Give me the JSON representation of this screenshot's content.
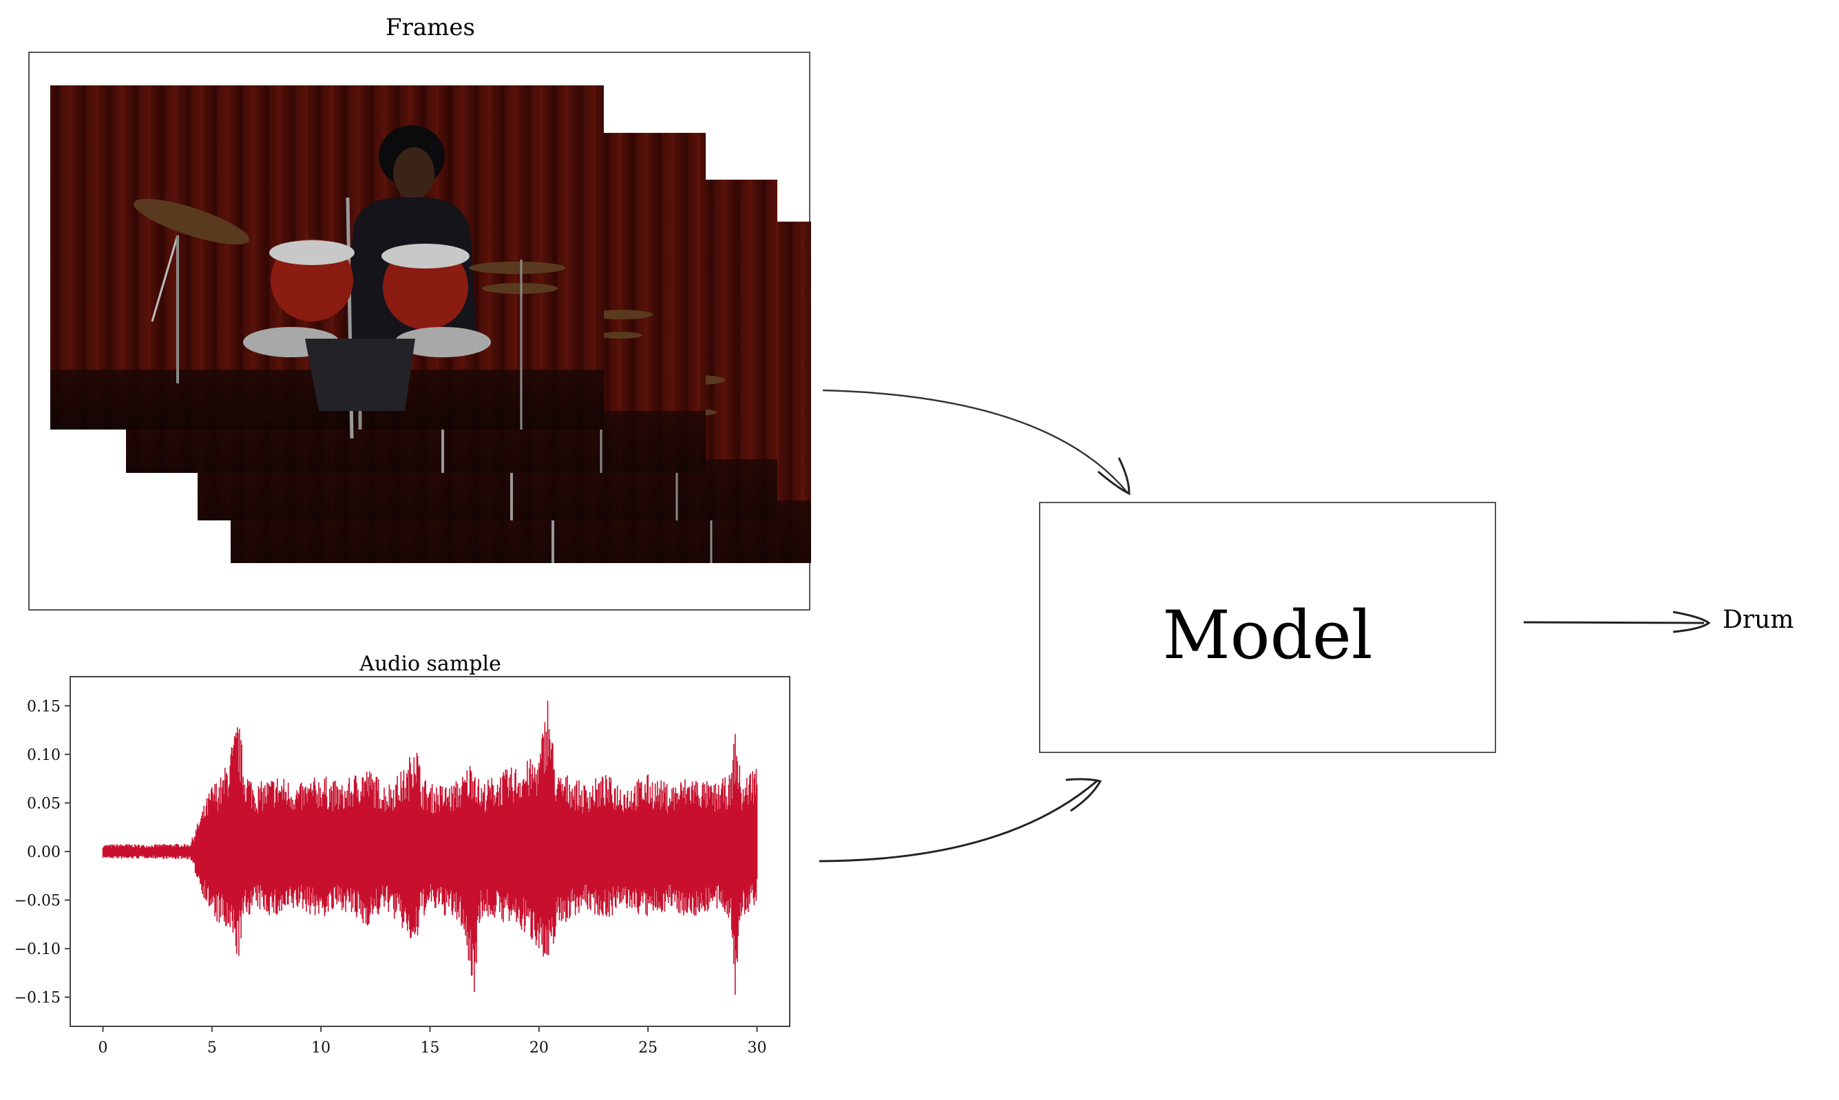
{
  "frames": {
    "title": "Frames",
    "frame_count": 4,
    "colors": {
      "curtain": "#4a0d08",
      "curtain_dark": "#2a0604",
      "drum_shell": "#8a1c12",
      "chrome": "#c8c8c8",
      "cymbal": "#5a3a1e",
      "shirt": "#14141a",
      "skin": "#3a2418"
    }
  },
  "model": {
    "label": "Model"
  },
  "output": {
    "label": "Drum"
  },
  "colors": {
    "arrow": "#333333",
    "box_border": "#555555",
    "waveform": "#c8102e"
  },
  "chart_data": {
    "type": "line",
    "title": "Audio sample",
    "xlabel": "",
    "ylabel": "",
    "xlim": [
      -1.5,
      31.5
    ],
    "ylim": [
      -0.18,
      0.18
    ],
    "x_ticks": [
      0,
      5,
      10,
      15,
      20,
      25,
      30
    ],
    "x_tick_labels": [
      "0",
      "5",
      "10",
      "15",
      "20",
      "25",
      "30"
    ],
    "y_ticks": [
      0.15,
      0.1,
      0.05,
      0.0,
      -0.05,
      -0.1,
      -0.15
    ],
    "y_tick_labels": [
      "0.15",
      "0.10",
      "0.05",
      "0.00",
      "−0.05",
      "−0.10",
      "−0.15"
    ],
    "series": [
      {
        "name": "waveform",
        "color": "#c8102e",
        "envelope": {
          "x": [
            0.0,
            1.0,
            2.0,
            3.0,
            4.0,
            4.5,
            5.0,
            5.5,
            6.0,
            6.2,
            6.5,
            7.0,
            8.0,
            9.0,
            10.0,
            11.0,
            12.0,
            13.0,
            14.0,
            14.3,
            14.6,
            15.0,
            16.0,
            16.5,
            17.0,
            17.3,
            18.0,
            19.0,
            20.0,
            20.4,
            20.8,
            21.5,
            22.0,
            23.0,
            24.0,
            25.0,
            26.0,
            27.0,
            28.0,
            28.8,
            29.0,
            29.3,
            29.8,
            30.0
          ],
          "upper": [
            0.007,
            0.008,
            0.007,
            0.008,
            0.008,
            0.04,
            0.07,
            0.08,
            0.12,
            0.14,
            0.09,
            0.07,
            0.08,
            0.07,
            0.08,
            0.07,
            0.09,
            0.07,
            0.09,
            0.13,
            0.08,
            0.07,
            0.07,
            0.08,
            0.1,
            0.07,
            0.08,
            0.09,
            0.1,
            0.165,
            0.08,
            0.08,
            0.07,
            0.08,
            0.07,
            0.08,
            0.07,
            0.08,
            0.07,
            0.08,
            0.13,
            0.07,
            0.09,
            0.09
          ],
          "lower": [
            -0.007,
            -0.008,
            -0.007,
            -0.008,
            -0.008,
            -0.04,
            -0.07,
            -0.08,
            -0.1,
            -0.115,
            -0.07,
            -0.06,
            -0.07,
            -0.06,
            -0.07,
            -0.06,
            -0.08,
            -0.06,
            -0.09,
            -0.11,
            -0.07,
            -0.06,
            -0.07,
            -0.08,
            -0.155,
            -0.07,
            -0.07,
            -0.08,
            -0.1,
            -0.135,
            -0.08,
            -0.07,
            -0.06,
            -0.07,
            -0.06,
            -0.07,
            -0.06,
            -0.07,
            -0.06,
            -0.07,
            -0.155,
            -0.07,
            -0.06,
            -0.05
          ]
        }
      }
    ]
  }
}
